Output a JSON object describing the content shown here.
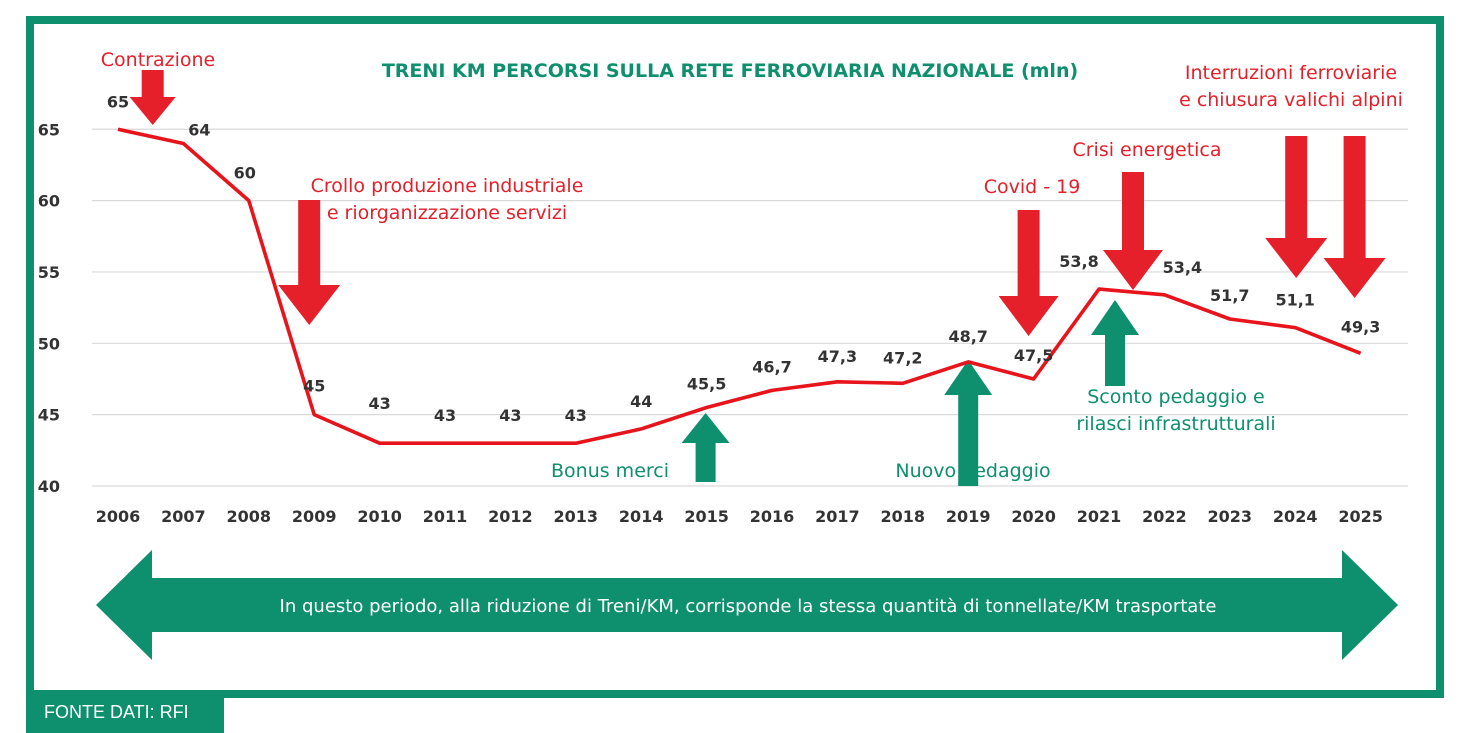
{
  "colors": {
    "green": "#0e8f6e",
    "red": "#e5202a",
    "line": "#e8141b",
    "text": "#333333",
    "grid": "#d9d9d9"
  },
  "source_label": "FONTE DATI: RFI",
  "arrow_banner": "In questo periodo, alla riduzione di Treni/KM, corrisponde la stessa quantità di tonnellate/KM trasportate",
  "chart_data": {
    "type": "line",
    "title": "TRENI KM PERCORSI SULLA RETE FERROVIARIA NAZIONALE (mln)",
    "xlabel": "",
    "ylabel": "",
    "ylim": [
      40,
      65
    ],
    "yticks": [
      40,
      45,
      50,
      55,
      60,
      65
    ],
    "grid": true,
    "legend": "none",
    "categories": [
      "2006",
      "2007",
      "2008",
      "2009",
      "2010",
      "2011",
      "2012",
      "2013",
      "2014",
      "2015",
      "2016",
      "2017",
      "2018",
      "2019",
      "2020",
      "2021",
      "2022",
      "2023",
      "2024",
      "2025"
    ],
    "values": [
      65,
      64,
      60,
      45,
      43,
      43,
      43,
      43,
      44,
      45.5,
      46.7,
      47.3,
      47.2,
      48.7,
      47.5,
      53.8,
      53.4,
      51.7,
      51.1,
      49.3
    ],
    "data_labels": [
      "65",
      "64",
      "60",
      "45",
      "43",
      "43",
      "43",
      "43",
      "44",
      "45,5",
      "46,7",
      "47,3",
      "47,2",
      "48,7",
      "47,5",
      "53,8",
      "53,4",
      "51,7",
      "51,1",
      "49,3"
    ],
    "annotations": [
      {
        "lines": [
          "Contrazione"
        ],
        "color": "red"
      },
      {
        "lines": [
          "Crollo produzione industriale",
          "e riorganizzazione servizi"
        ],
        "color": "red"
      },
      {
        "lines": [
          "Covid - 19"
        ],
        "color": "red"
      },
      {
        "lines": [
          "Crisi energetica"
        ],
        "color": "red"
      },
      {
        "lines": [
          "Interruzioni ferroviarie",
          "e chiusura valichi alpini"
        ],
        "color": "red"
      },
      {
        "lines": [
          "Bonus merci"
        ],
        "color": "green"
      },
      {
        "lines": [
          "Nuovo pedaggio"
        ],
        "color": "green"
      },
      {
        "lines": [
          "Sconto pedaggio e",
          "rilasci infrastrutturali"
        ],
        "color": "green"
      }
    ]
  }
}
